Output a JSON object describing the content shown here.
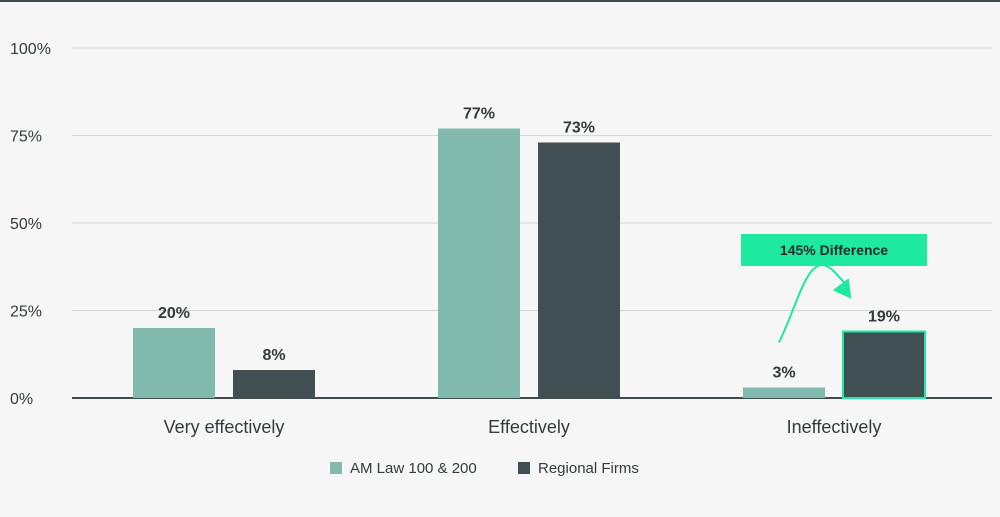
{
  "chart_data": {
    "type": "bar",
    "title": "",
    "xlabel": "",
    "ylabel": "",
    "ylim": [
      0,
      100
    ],
    "yticks": [
      "0%",
      "25%",
      "50%",
      "75%",
      "100%"
    ],
    "ytick_values": [
      0,
      25,
      50,
      75,
      100
    ],
    "categories": [
      "Very effectively",
      "Effectively",
      "Ineffectively"
    ],
    "series": [
      {
        "name": "AM Law 100 & 200",
        "values": [
          20,
          77,
          3
        ],
        "labels": [
          "20%",
          "77%",
          "3%"
        ],
        "color": "#82bbad"
      },
      {
        "name": "Regional Firms",
        "values": [
          8,
          73,
          19
        ],
        "labels": [
          "8%",
          "73%",
          "19%"
        ],
        "color": "#414f52"
      }
    ],
    "grid": true,
    "legend_position": "bottom-center",
    "annotation": {
      "text": "145% Difference",
      "category": "Ineffectively",
      "color": "#1de9a0"
    }
  }
}
